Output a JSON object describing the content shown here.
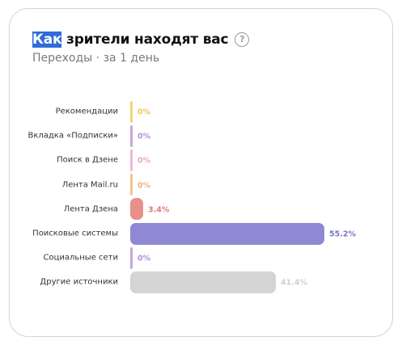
{
  "widget": {
    "title_selected": "Как",
    "title_rest": " зрители находят вас",
    "subtitle": "Переходы · за 1 день",
    "help_icon": "question-circle-icon"
  },
  "chart_data": {
    "type": "bar",
    "orientation": "horizontal",
    "categories": [
      "Рекомендации",
      "Вкладка «Подписки»",
      "Поиск в Дзене",
      "Лента Mail.ru",
      "Лента Дзена",
      "Поисковые системы",
      "Социальные сети",
      "Другие источники"
    ],
    "values": [
      0,
      0,
      0,
      0,
      3.4,
      55.2,
      0,
      41.4
    ],
    "value_labels": [
      "0%",
      "0%",
      "0%",
      "0%",
      "3.4%",
      "55.2%",
      "0%",
      "41.4%"
    ],
    "colors": [
      "#f5d47a",
      "#c9a8e0",
      "#f0b8cf",
      "#f3c48e",
      "#e88f8a",
      "#8f88d3",
      "#c9a8e0",
      "#d4d4d4"
    ],
    "label_colors": [
      "#f0c85a",
      "#b98fd8",
      "#eaa8c2",
      "#eeb47a",
      "#e07a76",
      "#7d76c9",
      "#b98fd8",
      "#cfcfcf"
    ],
    "unit": "%",
    "xlim": [
      0,
      55.2
    ]
  }
}
